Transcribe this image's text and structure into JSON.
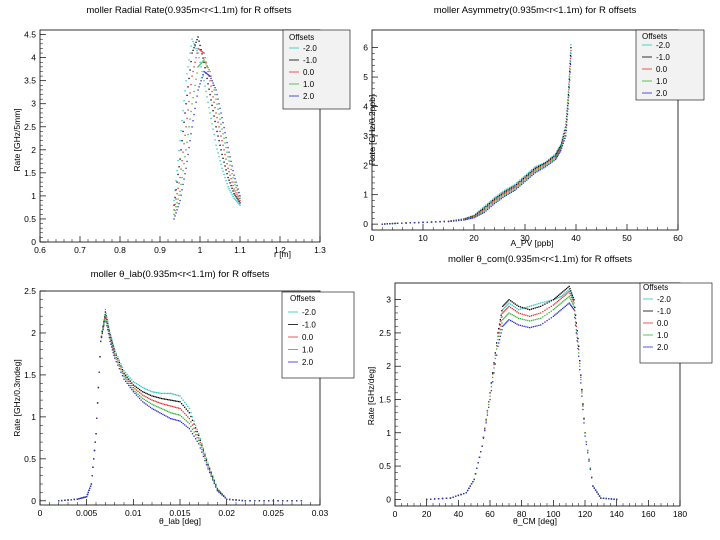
{
  "legend_title": "Offsets",
  "offsets": [
    "-2.0",
    "-1.0",
    "0.0",
    "1.0",
    "2.0"
  ],
  "series_colors": [
    "#29c4c4",
    "#000000",
    "#e0312e",
    "#2fb52f",
    "#2b2bd0"
  ],
  "chart_data": [
    {
      "id": "radial",
      "type": "scatter",
      "title": "moller Radial Rate(0.935m<r<1.1m) for R offsets",
      "xlabel": "r [m]",
      "ylabel": "Rate [GHz/5mm]",
      "xlim": [
        0.6,
        1.3
      ],
      "ylim": [
        0,
        4.6
      ],
      "xticks": [
        0.6,
        0.7,
        0.8,
        0.9,
        1,
        1.1,
        1.2,
        1.3
      ],
      "xtick_labels": [
        "0.6",
        "0.7",
        "0.8",
        "0.9",
        "1",
        "1.1",
        "1.2",
        "1.3"
      ],
      "yticks": [
        0,
        0.5,
        1,
        1.5,
        2,
        2.5,
        3,
        3.5,
        4,
        4.5
      ],
      "ytick_labels": [
        "0",
        "0.5",
        "1",
        "1.5",
        "2",
        "2.5",
        "3",
        "3.5",
        "4",
        "4.5"
      ],
      "x": [
        0.935,
        0.95,
        0.965,
        0.98,
        0.995,
        1.01,
        1.025,
        1.04,
        1.055,
        1.07,
        1.085,
        1.1
      ],
      "series": [
        {
          "name": "-2.0",
          "values": [
            0.9,
            2.2,
            3.5,
            4.4,
            4.1,
            3.5,
            2.8,
            2.1,
            1.6,
            1.2,
            0.95,
            0.8
          ]
        },
        {
          "name": "-1.0",
          "values": [
            0.8,
            1.8,
            3.0,
            4.1,
            4.45,
            3.9,
            3.2,
            2.5,
            1.9,
            1.4,
            1.05,
            0.85
          ]
        },
        {
          "name": "0.0",
          "values": [
            0.7,
            1.4,
            2.5,
            3.6,
            4.2,
            4.1,
            3.5,
            2.8,
            2.2,
            1.6,
            1.15,
            0.9
          ]
        },
        {
          "name": "1.0",
          "values": [
            0.6,
            1.1,
            2.0,
            3.0,
            3.8,
            3.95,
            3.7,
            3.1,
            2.45,
            1.85,
            1.3,
            0.95
          ]
        },
        {
          "name": "2.0",
          "values": [
            0.5,
            0.9,
            1.6,
            2.5,
            3.3,
            3.7,
            3.6,
            3.3,
            2.7,
            2.05,
            1.45,
            1.0
          ]
        }
      ]
    },
    {
      "id": "asymmetry",
      "type": "scatter",
      "title": "moller Asymmetry(0.935m<r<1.1m) for R offsets",
      "xlabel": "A_PV [ppb]",
      "ylabel": "Rate [GHz/0.2ppb]",
      "xlim": [
        0,
        60
      ],
      "ylim": [
        -0.2,
        6.6
      ],
      "xticks": [
        0,
        10,
        20,
        30,
        40,
        50,
        60
      ],
      "xtick_labels": [
        "0",
        "10",
        "20",
        "30",
        "40",
        "50",
        "60"
      ],
      "yticks": [
        0,
        1,
        2,
        3,
        4,
        5,
        6
      ],
      "ytick_labels": [
        "0",
        "1",
        "2",
        "3",
        "4",
        "5",
        "6"
      ],
      "x": [
        2,
        5,
        10,
        15,
        18,
        20,
        22,
        24,
        26,
        28,
        30,
        32,
        34,
        36,
        37,
        38,
        38.5,
        39
      ],
      "series": [
        {
          "name": "-2.0",
          "values": [
            0,
            0.03,
            0.06,
            0.1,
            0.18,
            0.3,
            0.6,
            0.9,
            1.15,
            1.35,
            1.65,
            1.95,
            2.1,
            2.4,
            2.7,
            3.4,
            4.5,
            6.1
          ]
        },
        {
          "name": "-1.0",
          "values": [
            0,
            0.03,
            0.06,
            0.1,
            0.17,
            0.28,
            0.55,
            0.85,
            1.1,
            1.3,
            1.6,
            1.9,
            2.08,
            2.35,
            2.65,
            3.3,
            4.4,
            6.0
          ]
        },
        {
          "name": "0.0",
          "values": [
            0,
            0.03,
            0.06,
            0.1,
            0.16,
            0.26,
            0.5,
            0.8,
            1.05,
            1.25,
            1.55,
            1.85,
            2.05,
            2.3,
            2.6,
            3.2,
            4.3,
            5.9
          ]
        },
        {
          "name": "1.0",
          "values": [
            0,
            0.03,
            0.06,
            0.09,
            0.15,
            0.24,
            0.45,
            0.75,
            1.0,
            1.2,
            1.5,
            1.8,
            2.0,
            2.25,
            2.55,
            3.1,
            4.2,
            5.8
          ]
        },
        {
          "name": "2.0",
          "values": [
            0,
            0.03,
            0.06,
            0.09,
            0.14,
            0.22,
            0.4,
            0.7,
            0.95,
            1.15,
            1.45,
            1.75,
            1.95,
            2.2,
            2.5,
            3.0,
            4.1,
            5.7
          ]
        }
      ]
    },
    {
      "id": "theta_lab",
      "type": "scatter",
      "title": "moller θ_lab(0.935m<r<1.1m) for R offsets",
      "xlabel": "θ_lab [deg]",
      "ylabel": "Rate [GHz/0.3mdeg]",
      "xlim": [
        0,
        0.03
      ],
      "ylim": [
        -0.05,
        2.5
      ],
      "xticks": [
        0,
        0.005,
        0.01,
        0.015,
        0.02,
        0.025,
        0.03
      ],
      "xtick_labels": [
        "0",
        "0.005",
        "0.01",
        "0.015",
        "0.02",
        "0.025",
        "0.03"
      ],
      "yticks": [
        0,
        0.5,
        1,
        1.5,
        2,
        2.5
      ],
      "ytick_labels": [
        "0",
        "0.5",
        "1",
        "1.5",
        "2",
        "2.5"
      ],
      "x": [
        0.002,
        0.004,
        0.005,
        0.0055,
        0.006,
        0.0065,
        0.007,
        0.0075,
        0.008,
        0.009,
        0.01,
        0.011,
        0.012,
        0.013,
        0.014,
        0.015,
        0.016,
        0.017,
        0.018,
        0.019,
        0.02,
        0.022,
        0.025,
        0.028
      ],
      "series": [
        {
          "name": "-2.0",
          "values": [
            0,
            0.02,
            0.05,
            0.2,
            0.8,
            1.9,
            2.28,
            2.0,
            1.8,
            1.55,
            1.42,
            1.35,
            1.3,
            1.28,
            1.28,
            1.25,
            1.1,
            0.8,
            0.45,
            0.15,
            0.02,
            0,
            0,
            0
          ]
        },
        {
          "name": "-1.0",
          "values": [
            0,
            0.02,
            0.05,
            0.2,
            0.8,
            1.9,
            2.25,
            1.98,
            1.78,
            1.52,
            1.38,
            1.3,
            1.25,
            1.22,
            1.2,
            1.18,
            1.05,
            0.78,
            0.43,
            0.14,
            0.02,
            0,
            0,
            0
          ]
        },
        {
          "name": "0.0",
          "values": [
            0,
            0.02,
            0.05,
            0.2,
            0.8,
            1.9,
            2.22,
            1.95,
            1.75,
            1.5,
            1.35,
            1.26,
            1.2,
            1.16,
            1.13,
            1.1,
            0.98,
            0.75,
            0.42,
            0.13,
            0.02,
            0,
            0,
            0
          ]
        },
        {
          "name": "1.0",
          "values": [
            0,
            0.02,
            0.05,
            0.2,
            0.8,
            1.9,
            2.2,
            1.93,
            1.73,
            1.48,
            1.32,
            1.22,
            1.15,
            1.1,
            1.05,
            1.02,
            0.92,
            0.72,
            0.4,
            0.13,
            0.02,
            0,
            0,
            0
          ]
        },
        {
          "name": "2.0",
          "values": [
            0,
            0.02,
            0.05,
            0.2,
            0.8,
            1.9,
            2.18,
            1.9,
            1.7,
            1.45,
            1.3,
            1.18,
            1.1,
            1.04,
            0.98,
            0.95,
            0.86,
            0.68,
            0.38,
            0.12,
            0.02,
            0,
            0,
            0
          ]
        }
      ]
    },
    {
      "id": "theta_com",
      "type": "scatter",
      "title": "moller θ_com(0.935m<r<1.1m) for R offsets",
      "xlabel": "θ_CM [deg]",
      "ylabel": "Rate [GHz/deg]",
      "xlim": [
        0,
        180
      ],
      "ylim": [
        -0.1,
        3.25
      ],
      "xticks": [
        0,
        20,
        40,
        60,
        80,
        100,
        120,
        140,
        160,
        180
      ],
      "xtick_labels": [
        "0",
        "20",
        "40",
        "60",
        "80",
        "100",
        "120",
        "140",
        "160",
        "180"
      ],
      "yticks": [
        0,
        0.5,
        1,
        1.5,
        2,
        2.5,
        3
      ],
      "ytick_labels": [
        "0",
        "0.5",
        "1",
        "1.5",
        "2",
        "2.5",
        "3"
      ],
      "x": [
        20,
        35,
        45,
        50,
        55,
        60,
        65,
        68,
        72,
        78,
        85,
        92,
        100,
        105,
        110,
        113,
        116,
        120,
        125,
        130,
        140
      ],
      "series": [
        {
          "name": "-2.0",
          "values": [
            0,
            0.02,
            0.1,
            0.3,
            0.8,
            1.6,
            2.5,
            2.85,
            2.95,
            2.85,
            2.9,
            2.95,
            3.0,
            3.05,
            3.15,
            3.0,
            2.3,
            1.0,
            0.2,
            0.02,
            0
          ]
        },
        {
          "name": "-1.0",
          "values": [
            0,
            0.02,
            0.1,
            0.3,
            0.8,
            1.6,
            2.5,
            2.9,
            3.0,
            2.9,
            2.85,
            2.9,
            3.0,
            3.1,
            3.2,
            3.0,
            2.3,
            1.0,
            0.2,
            0.02,
            0
          ]
        },
        {
          "name": "0.0",
          "values": [
            0,
            0.02,
            0.1,
            0.3,
            0.8,
            1.6,
            2.45,
            2.8,
            2.9,
            2.8,
            2.75,
            2.8,
            2.92,
            3.02,
            3.12,
            2.95,
            2.25,
            1.0,
            0.2,
            0.02,
            0
          ]
        },
        {
          "name": "1.0",
          "values": [
            0,
            0.02,
            0.1,
            0.3,
            0.8,
            1.55,
            2.4,
            2.7,
            2.8,
            2.72,
            2.68,
            2.72,
            2.85,
            2.95,
            3.05,
            2.9,
            2.2,
            1.0,
            0.2,
            0.02,
            0
          ]
        },
        {
          "name": "2.0",
          "values": [
            0,
            0.02,
            0.1,
            0.3,
            0.8,
            1.5,
            2.3,
            2.6,
            2.7,
            2.62,
            2.58,
            2.62,
            2.75,
            2.85,
            2.95,
            2.85,
            2.15,
            0.95,
            0.2,
            0.02,
            0
          ]
        }
      ]
    }
  ]
}
